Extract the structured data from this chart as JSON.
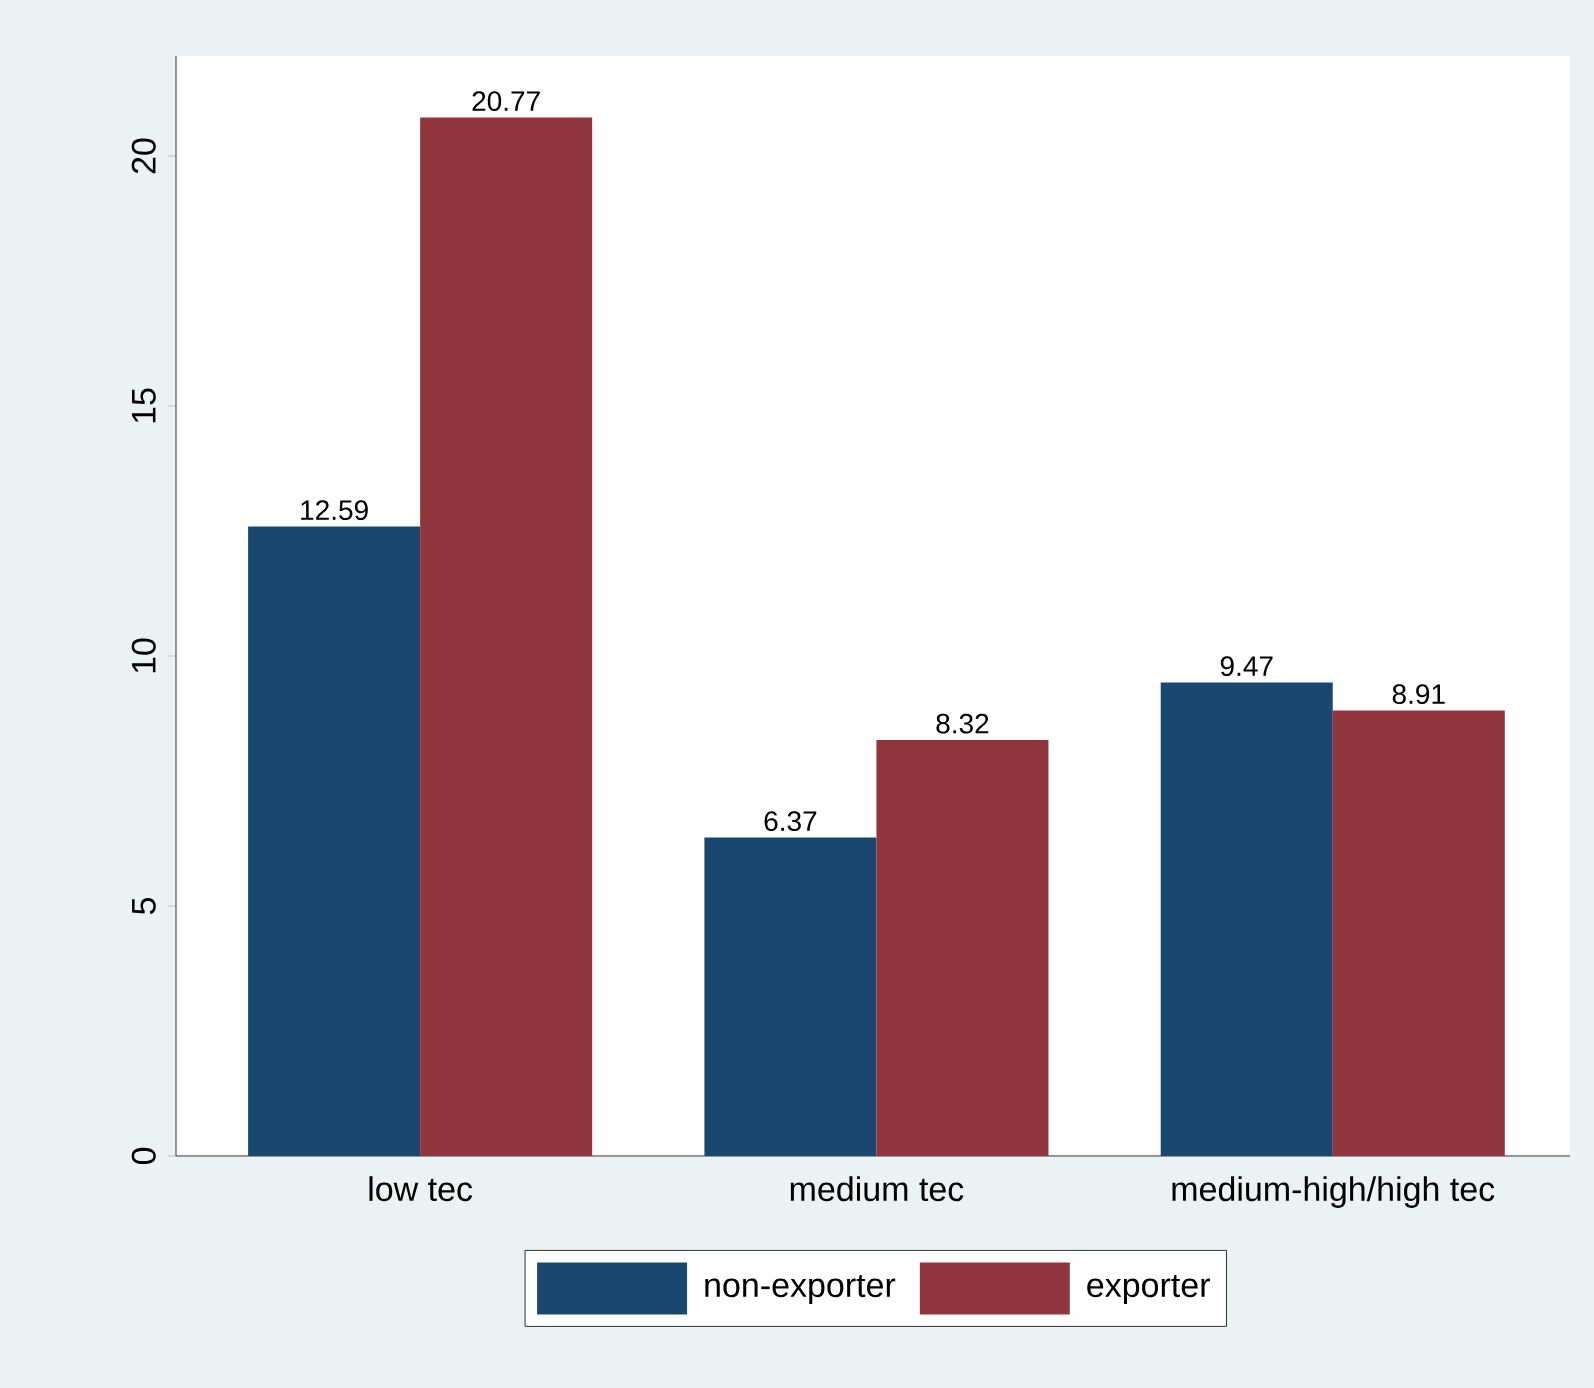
{
  "chart_data": {
    "type": "bar",
    "categories": [
      "low tec",
      "medium tec",
      "medium-high/high tec"
    ],
    "series": [
      {
        "name": "non-exporter",
        "color": "#1a476f",
        "values": [
          12.59,
          6.37,
          9.47
        ]
      },
      {
        "name": "exporter",
        "color": "#90353b",
        "values": [
          20.77,
          8.32,
          8.91
        ]
      }
    ],
    "ylim": [
      0,
      22
    ],
    "yticks": [
      0,
      5,
      10,
      15,
      20
    ],
    "data_labels": true,
    "legend": "bottom",
    "grid": false
  }
}
